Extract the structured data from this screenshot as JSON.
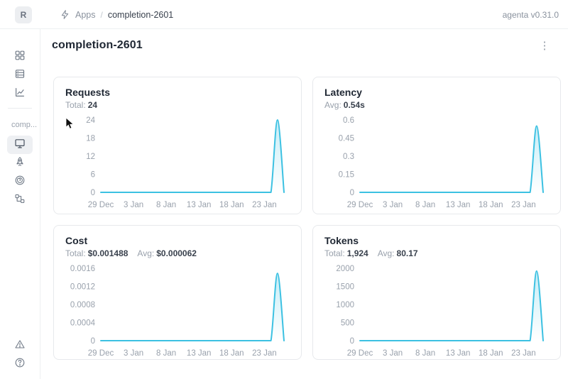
{
  "header": {
    "logo_letter": "R",
    "breadcrumb": {
      "section": "Apps",
      "separator": "/",
      "current": "completion-2601"
    },
    "version": "agenta v0.31.0"
  },
  "sidebar": {
    "workspace_label": "comp...",
    "top_icons": [
      "grid",
      "rows",
      "line-chart"
    ],
    "app_icons": [
      "monitor",
      "rocket",
      "swirl",
      "workflow"
    ],
    "selected_icon": "monitor",
    "bottom_icons": [
      "alert-triangle",
      "help-circle"
    ]
  },
  "main": {
    "title": "completion-2601",
    "more_glyph": "⋮"
  },
  "theme": {
    "accent": "#3cc1e2",
    "accent_fill_opacity": "0.30",
    "text_dark": "#1f2733",
    "text_gray": "#98a0ab",
    "tick_gray": "#99a1ac",
    "card_border": "#e7e9ec"
  },
  "chart_data": [
    {
      "type": "line",
      "title": "Requests",
      "stats": [
        {
          "label": "Total:",
          "value": "24"
        }
      ],
      "x_ticks": [
        "29 Dec",
        "3 Jan",
        "8 Jan",
        "13 Jan",
        "18 Jan",
        "23 Jan"
      ],
      "x_tick_indices": [
        0,
        5,
        10,
        15,
        20,
        25
      ],
      "yticks": [
        "0",
        "6",
        "12",
        "18",
        "24"
      ],
      "ymax": 24,
      "values": [
        0,
        0,
        0,
        0,
        0,
        0,
        0,
        0,
        0,
        0,
        0,
        0,
        0,
        0,
        0,
        0,
        0,
        0,
        0,
        0,
        0,
        0,
        0,
        0,
        0,
        0,
        0,
        24,
        0
      ]
    },
    {
      "type": "line",
      "title": "Latency",
      "stats": [
        {
          "label": "Avg:",
          "value": "0.54s"
        }
      ],
      "x_ticks": [
        "29 Dec",
        "3 Jan",
        "8 Jan",
        "13 Jan",
        "18 Jan",
        "23 Jan"
      ],
      "x_tick_indices": [
        0,
        5,
        10,
        15,
        20,
        25
      ],
      "yticks": [
        "0",
        "0.15",
        "0.3",
        "0.45",
        "0.6"
      ],
      "ymax": 0.6,
      "values": [
        0,
        0,
        0,
        0,
        0,
        0,
        0,
        0,
        0,
        0,
        0,
        0,
        0,
        0,
        0,
        0,
        0,
        0,
        0,
        0,
        0,
        0,
        0,
        0,
        0,
        0,
        0,
        0.55,
        0
      ]
    },
    {
      "type": "line",
      "title": "Cost",
      "stats": [
        {
          "label": "Total:",
          "value": "$0.001488"
        },
        {
          "label": "Avg:",
          "value": "$0.000062"
        }
      ],
      "x_ticks": [
        "29 Dec",
        "3 Jan",
        "8 Jan",
        "13 Jan",
        "18 Jan",
        "23 Jan"
      ],
      "x_tick_indices": [
        0,
        5,
        10,
        15,
        20,
        25
      ],
      "yticks": [
        "0",
        "0.0004",
        "0.0008",
        "0.0012",
        "0.0016"
      ],
      "ymax": 0.0016,
      "values": [
        0,
        0,
        0,
        0,
        0,
        0,
        0,
        0,
        0,
        0,
        0,
        0,
        0,
        0,
        0,
        0,
        0,
        0,
        0,
        0,
        0,
        0,
        0,
        0,
        0,
        0,
        0,
        0.001488,
        0
      ]
    },
    {
      "type": "line",
      "title": "Tokens",
      "stats": [
        {
          "label": "Total:",
          "value": "1,924"
        },
        {
          "label": "Avg:",
          "value": "80.17"
        }
      ],
      "x_ticks": [
        "29 Dec",
        "3 Jan",
        "8 Jan",
        "13 Jan",
        "18 Jan",
        "23 Jan"
      ],
      "x_tick_indices": [
        0,
        5,
        10,
        15,
        20,
        25
      ],
      "yticks": [
        "0",
        "500",
        "1000",
        "1500",
        "2000"
      ],
      "ymax": 2000,
      "values": [
        0,
        0,
        0,
        0,
        0,
        0,
        0,
        0,
        0,
        0,
        0,
        0,
        0,
        0,
        0,
        0,
        0,
        0,
        0,
        0,
        0,
        0,
        0,
        0,
        0,
        0,
        0,
        1924,
        0
      ]
    }
  ]
}
